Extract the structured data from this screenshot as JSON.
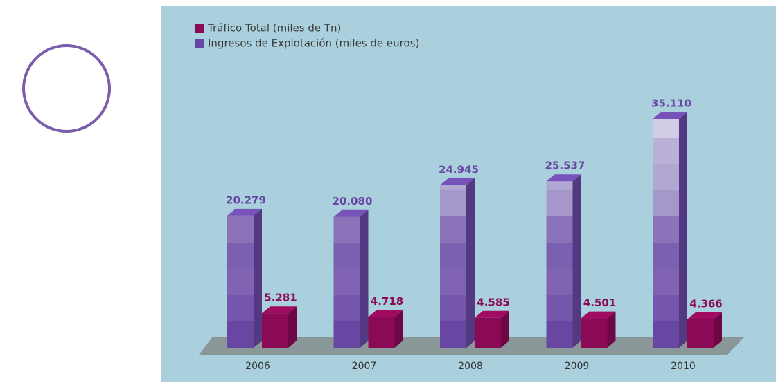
{
  "chart_data": {
    "type": "bar3d",
    "categories": [
      "2006",
      "2007",
      "2008",
      "2009",
      "2010"
    ],
    "series": [
      {
        "name": "Ingresos de Explotación (miles de euros)",
        "color": "#6847a3",
        "values": [
          20279,
          20080,
          24945,
          25537,
          35110
        ],
        "value_labels": [
          "20.279",
          "20.080",
          "24.945",
          "25.537",
          "35.110"
        ]
      },
      {
        "name": "Tráfico Total (miles de Tn)",
        "color": "#8a0a55",
        "values": [
          5281,
          4718,
          4585,
          4501,
          4366
        ],
        "value_labels": [
          "5.281",
          "4.718",
          "4.585",
          "4.501",
          "4.366"
        ]
      }
    ]
  }
}
